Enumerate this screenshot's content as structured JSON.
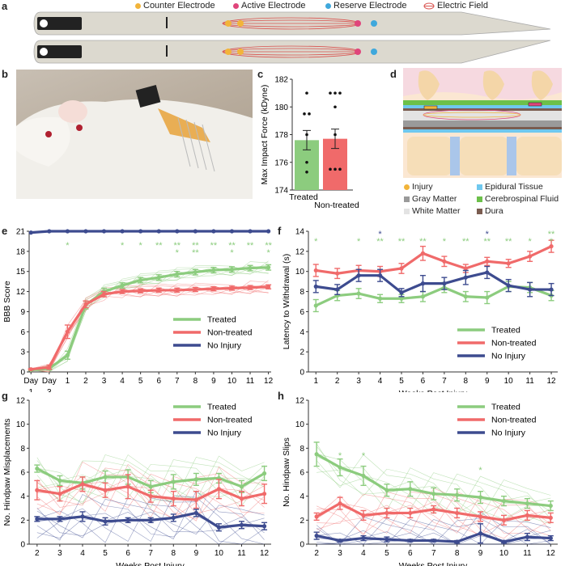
{
  "panels": {
    "a": "a",
    "b": "b",
    "c": "c",
    "d": "d",
    "e": "e",
    "f": "f",
    "g": "g",
    "h": "h"
  },
  "legend_a": [
    {
      "label": "Counter Electrode",
      "color": "#f2b43a"
    },
    {
      "label": "Active Electrode",
      "color": "#e0457b"
    },
    {
      "label": "Reserve Electrode",
      "color": "#3fa8dc"
    },
    {
      "label": "Electric Field",
      "color": "#d9534f"
    }
  ],
  "legend_d": [
    {
      "label": "Injury",
      "color": "#f2b43a"
    },
    {
      "label": "Epidural Tissue",
      "color": "#6fc8ef"
    },
    {
      "label": "Gray Matter",
      "color": "#9a9a9a"
    },
    {
      "label": "Cerebrospinal Fluid",
      "color": "#6cc04a"
    },
    {
      "label": "White Matter",
      "color": "#e3e3e3"
    },
    {
      "label": "Dura",
      "color": "#7a5c50"
    }
  ],
  "colors": {
    "treated": "#8ccc7e",
    "nontreated": "#f06a6a",
    "noinjury": "#3d4b8f"
  },
  "chart_data": [
    {
      "panel": "c",
      "type": "bar",
      "categories": [
        "Treated",
        "Non-treated"
      ],
      "values": [
        177.6,
        177.7
      ],
      "errors": [
        0.7,
        0.7
      ],
      "points": [
        [
          181,
          179.5,
          179.5,
          178,
          176,
          175.3
        ],
        [
          181,
          181,
          181,
          180,
          178,
          175.5,
          175.5,
          175.5
        ]
      ],
      "ylabel": "Max Impact Force (kDyne)",
      "ylim": [
        174,
        182
      ],
      "yticks": [
        174,
        176,
        178,
        180,
        182
      ]
    },
    {
      "panel": "e",
      "type": "line",
      "x": [
        -1,
        0,
        1,
        2,
        3,
        4,
        5,
        6,
        7,
        8,
        9,
        10,
        11,
        12
      ],
      "xticklabels": [
        "Day",
        "Day",
        "1",
        "2",
        "3",
        "4",
        "5",
        "6",
        "7",
        "8",
        "9",
        "10",
        "11",
        "12"
      ],
      "xticklabels2": [
        "1",
        "3"
      ],
      "xlabel": "Weeks Post Injury",
      "ylabel": "BBB Score",
      "ylim": [
        0,
        21
      ],
      "yticks": [
        0,
        3,
        6,
        9,
        12,
        15,
        18,
        21
      ],
      "series": [
        {
          "name": "Treated",
          "values": [
            0.3,
            0.5,
            2.5,
            10.0,
            12.0,
            12.9,
            13.7,
            14.1,
            14.6,
            14.9,
            15.2,
            15.3,
            15.5,
            15.6
          ],
          "errors": [
            0.1,
            0.2,
            0.6,
            0.6,
            0.5,
            0.4,
            0.4,
            0.4,
            0.4,
            0.4,
            0.4,
            0.4,
            0.4,
            0.4
          ]
        },
        {
          "name": "Non-treated",
          "values": [
            0.4,
            0.7,
            6.0,
            10.1,
            11.6,
            12.0,
            12.1,
            12.2,
            12.2,
            12.3,
            12.4,
            12.5,
            12.6,
            12.7
          ],
          "errors": [
            0.1,
            0.3,
            1.0,
            0.5,
            0.4,
            0.3,
            0.3,
            0.3,
            0.3,
            0.3,
            0.3,
            0.3,
            0.3,
            0.3
          ]
        },
        {
          "name": "No Injury",
          "values": [
            20.8,
            21,
            21,
            21,
            21,
            21,
            21,
            21,
            21,
            21,
            21,
            21,
            21,
            21
          ],
          "errors": [
            0,
            0,
            0,
            0,
            0,
            0,
            0,
            0,
            0,
            0,
            0,
            0,
            0,
            0
          ]
        }
      ],
      "sig": [
        {
          "x": 1,
          "row": 1,
          "text": "*"
        },
        {
          "x": 4,
          "row": 1,
          "text": "*"
        },
        {
          "x": 5,
          "row": 1,
          "text": "*"
        },
        {
          "x": 6,
          "row": 1,
          "text": "**"
        },
        {
          "x": 7,
          "row": 1,
          "text": "**"
        },
        {
          "x": 7,
          "row": 2,
          "text": "*"
        },
        {
          "x": 8,
          "row": 1,
          "text": "**"
        },
        {
          "x": 8,
          "row": 2,
          "text": "**"
        },
        {
          "x": 9,
          "row": 1,
          "text": "**"
        },
        {
          "x": 10,
          "row": 1,
          "text": "**"
        },
        {
          "x": 10,
          "row": 2,
          "text": "*"
        },
        {
          "x": 11,
          "row": 1,
          "text": "**"
        },
        {
          "x": 12,
          "row": 1,
          "text": "**"
        },
        {
          "x": 12,
          "row": 2,
          "text": "*"
        }
      ]
    },
    {
      "panel": "f",
      "type": "line",
      "x": [
        1,
        2,
        3,
        4,
        5,
        6,
        7,
        8,
        9,
        10,
        11,
        12
      ],
      "xlabel": "Weeks Post Injury",
      "ylabel": "Latency to Withdrawal (s)",
      "ylim": [
        0,
        14
      ],
      "yticks": [
        0,
        2,
        4,
        6,
        8,
        10,
        12,
        14
      ],
      "series": [
        {
          "name": "Treated",
          "values": [
            6.6,
            7.6,
            7.8,
            7.3,
            7.3,
            7.5,
            8.4,
            7.5,
            7.4,
            8.5,
            8.4,
            7.6
          ],
          "errors": [
            0.6,
            0.5,
            0.5,
            0.4,
            0.4,
            0.5,
            0.5,
            0.5,
            0.6,
            0.5,
            0.5,
            0.5
          ]
        },
        {
          "name": "Non-treated",
          "values": [
            10.1,
            9.8,
            10.1,
            10.0,
            10.3,
            11.8,
            11.0,
            10.3,
            11.0,
            10.8,
            11.5,
            12.5
          ],
          "errors": [
            0.6,
            0.5,
            0.5,
            0.5,
            0.5,
            0.7,
            0.5,
            0.4,
            0.4,
            0.4,
            0.5,
            0.6
          ]
        },
        {
          "name": "No Injury",
          "values": [
            8.5,
            8.2,
            9.6,
            9.6,
            7.9,
            8.8,
            8.8,
            9.4,
            9.9,
            8.6,
            8.2,
            8.2
          ],
          "errors": [
            0.6,
            0.5,
            0.6,
            0.6,
            0.4,
            0.8,
            0.6,
            0.7,
            0.6,
            0.6,
            0.7,
            0.6
          ]
        }
      ],
      "sig": [
        {
          "x": 1,
          "row": 1,
          "text": "*",
          "color": "green"
        },
        {
          "x": 3,
          "row": 1,
          "text": "*",
          "color": "green"
        },
        {
          "x": 4,
          "row": 0,
          "text": "*",
          "color": "blue"
        },
        {
          "x": 4,
          "row": 1,
          "text": "**",
          "color": "green"
        },
        {
          "x": 5,
          "row": 1,
          "text": "**",
          "color": "green"
        },
        {
          "x": 6,
          "row": 1,
          "text": "**",
          "color": "green"
        },
        {
          "x": 7,
          "row": 1,
          "text": "*",
          "color": "green"
        },
        {
          "x": 8,
          "row": 1,
          "text": "**",
          "color": "green"
        },
        {
          "x": 9,
          "row": 0,
          "text": "*",
          "color": "blue"
        },
        {
          "x": 9,
          "row": 1,
          "text": "**",
          "color": "green"
        },
        {
          "x": 10,
          "row": 1,
          "text": "**",
          "color": "green"
        },
        {
          "x": 11,
          "row": 1,
          "text": "*",
          "color": "green"
        },
        {
          "x": 12,
          "row": 0,
          "text": "**",
          "color": "green"
        },
        {
          "x": 12,
          "row": 1,
          "text": "*",
          "color": "green"
        }
      ]
    },
    {
      "panel": "g",
      "type": "line",
      "x": [
        2,
        3,
        4,
        5,
        6,
        7,
        8,
        9,
        10,
        11,
        12
      ],
      "xlabel": "Weeks Post Injury",
      "ylabel": "No. Hindpaw Misplacements",
      "ylim": [
        0,
        12
      ],
      "yticks": [
        0,
        2,
        4,
        6,
        8,
        10,
        12
      ],
      "series": [
        {
          "name": "Treated",
          "values": [
            6.3,
            5.3,
            5.1,
            5.6,
            5.6,
            4.8,
            5.2,
            5.4,
            5.5,
            4.8,
            5.9
          ],
          "errors": [
            0.3,
            0.4,
            0.5,
            0.5,
            0.6,
            0.5,
            0.6,
            0.5,
            0.4,
            0.5,
            0.6
          ]
        },
        {
          "name": "Non-treated",
          "values": [
            4.5,
            4.2,
            5.0,
            4.5,
            4.8,
            4.0,
            3.8,
            3.7,
            4.6,
            3.8,
            4.2
          ],
          "errors": [
            0.8,
            0.6,
            0.6,
            0.6,
            1.0,
            0.5,
            0.6,
            0.7,
            0.8,
            0.6,
            0.8
          ]
        },
        {
          "name": "No Injury",
          "values": [
            2.1,
            2.1,
            2.3,
            1.9,
            2.0,
            2.0,
            2.2,
            2.6,
            1.4,
            1.6,
            1.5
          ],
          "errors": [
            0.2,
            0.2,
            0.4,
            0.3,
            0.2,
            0.2,
            0.3,
            0.3,
            0.3,
            0.3,
            0.3
          ]
        }
      ]
    },
    {
      "panel": "h",
      "type": "line",
      "x": [
        2,
        3,
        4,
        5,
        6,
        7,
        8,
        9,
        10,
        11,
        12
      ],
      "xlabel": "Weeks Post Injury",
      "ylabel": "No. Hindpaw Slips",
      "ylim": [
        0,
        12
      ],
      "yticks": [
        0,
        2,
        4,
        6,
        8,
        10,
        12
      ],
      "series": [
        {
          "name": "Treated",
          "values": [
            7.5,
            6.4,
            5.7,
            4.5,
            4.6,
            4.2,
            4.1,
            3.9,
            3.6,
            3.4,
            3.2
          ],
          "errors": [
            1.0,
            0.7,
            0.8,
            0.5,
            0.6,
            0.5,
            0.5,
            0.5,
            0.4,
            0.4,
            0.4
          ]
        },
        {
          "name": "Non-treated",
          "values": [
            2.3,
            3.4,
            2.4,
            2.6,
            2.6,
            2.9,
            2.6,
            2.3,
            2.0,
            2.4,
            2.2
          ],
          "errors": [
            0.3,
            0.5,
            0.4,
            0.4,
            0.4,
            0.3,
            0.4,
            0.4,
            0.4,
            0.4,
            0.4
          ]
        },
        {
          "name": "No Injury",
          "values": [
            0.7,
            0.3,
            0.5,
            0.4,
            0.3,
            0.3,
            0.2,
            0.9,
            0.2,
            0.6,
            0.5
          ],
          "errors": [
            0.3,
            0.1,
            0.2,
            0.2,
            0.1,
            0.1,
            0.1,
            0.8,
            0.1,
            0.3,
            0.2
          ]
        }
      ],
      "sig": [
        {
          "x": 3,
          "row": 1,
          "text": "*",
          "color": "green"
        },
        {
          "x": 4,
          "row": 1,
          "text": "*",
          "color": "green"
        },
        {
          "x": 9,
          "row": 3,
          "text": "*",
          "color": "green"
        }
      ]
    }
  ]
}
